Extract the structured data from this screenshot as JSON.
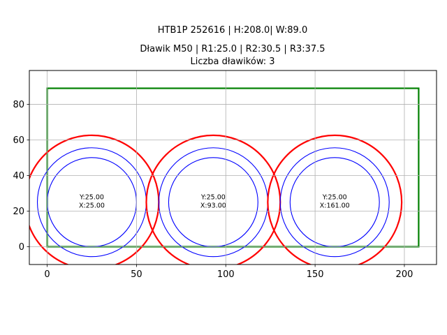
{
  "chart_data": {
    "type": "diagram-plot",
    "title_lines": [
      "HTB1P 252616 | H:208.0| W:89.0",
      "Dławik M50 | R1:25.0 | R2:30.5 | R3:37.5",
      "Liczba dławików: 3"
    ],
    "xlim": [
      -10,
      218
    ],
    "ylim": [
      -10,
      99
    ],
    "xticks": [
      0,
      50,
      100,
      150,
      200
    ],
    "yticks": [
      0,
      20,
      40,
      60,
      80
    ],
    "grid": true,
    "board": {
      "x": 0,
      "y": 0,
      "width": 208,
      "height": 89,
      "color": "#008000"
    },
    "radii": [
      {
        "r": 25.0,
        "color": "#0000ff",
        "style": "thin"
      },
      {
        "r": 30.5,
        "color": "#0000ff",
        "style": "thin"
      },
      {
        "r": 37.5,
        "color": "#ff0000",
        "style": "thick"
      }
    ],
    "glands": [
      {
        "x": 25,
        "y": 25,
        "label_y": "Y:25.00",
        "label_x": "X:25.00"
      },
      {
        "x": 93,
        "y": 25,
        "label_y": "Y:25.00",
        "label_x": "X:93.00"
      },
      {
        "x": 161,
        "y": 25,
        "label_y": "Y:25.00",
        "label_x": "X:161.00"
      }
    ]
  }
}
